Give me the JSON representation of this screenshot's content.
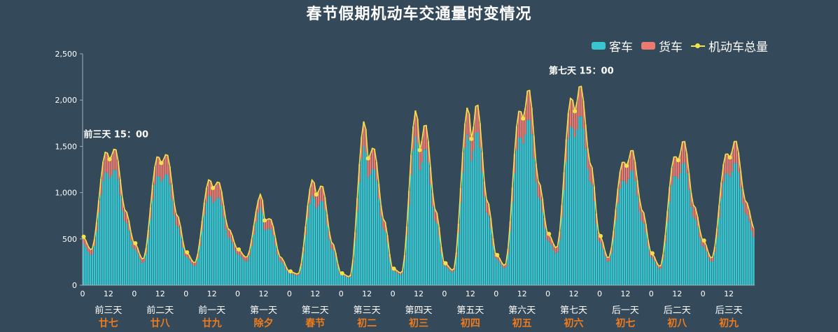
{
  "chart_data": {
    "type": "bar",
    "title": "春节假期机动车交通量时变情况",
    "xlabel": "",
    "ylabel": "",
    "ylim": [
      0,
      2500
    ],
    "yticks": [
      "0",
      "500",
      "1,000",
      "1,500",
      "2,000",
      "2,500"
    ],
    "grid": false,
    "legend_position": "top-right",
    "stacked": true,
    "hour_tick_labels": [
      "0",
      "12"
    ],
    "days": [
      {
        "name": "前三天",
        "lunar": "廿七"
      },
      {
        "name": "前二天",
        "lunar": "廿八"
      },
      {
        "name": "前一天",
        "lunar": "廿九"
      },
      {
        "name": "第一天",
        "lunar": "除夕"
      },
      {
        "name": "第二天",
        "lunar": "春节"
      },
      {
        "name": "第三天",
        "lunar": "初二"
      },
      {
        "name": "第四天",
        "lunar": "初三"
      },
      {
        "name": "第五天",
        "lunar": "初四"
      },
      {
        "name": "第六天",
        "lunar": "初五"
      },
      {
        "name": "第七天",
        "lunar": "初六"
      },
      {
        "name": "后一天",
        "lunar": "初七"
      },
      {
        "name": "后二天",
        "lunar": "初八"
      },
      {
        "name": "后三天",
        "lunar": "初九"
      }
    ],
    "day_profiles": [
      {
        "start": 530,
        "night_min": 380,
        "peak1": 1450,
        "mid_dip": 1360,
        "peak2": 1480,
        "evening": 800,
        "end": 460
      },
      {
        "start": 460,
        "night_min": 280,
        "peak1": 1400,
        "mid_dip": 1320,
        "peak2": 1420,
        "evening": 750,
        "end": 360
      },
      {
        "start": 360,
        "night_min": 240,
        "peak1": 1150,
        "mid_dip": 1050,
        "peak2": 1120,
        "evening": 600,
        "end": 390
      },
      {
        "start": 390,
        "night_min": 300,
        "peak1": 990,
        "mid_dip": 700,
        "peak2": 720,
        "evening": 300,
        "end": 150
      },
      {
        "start": 150,
        "night_min": 120,
        "peak1": 1150,
        "mid_dip": 980,
        "peak2": 1080,
        "evening": 450,
        "end": 130
      },
      {
        "start": 130,
        "night_min": 90,
        "peak1": 1790,
        "mid_dip": 1370,
        "peak2": 1490,
        "evening": 700,
        "end": 180
      },
      {
        "start": 180,
        "night_min": 130,
        "peak1": 1910,
        "mid_dip": 1460,
        "peak2": 1750,
        "evening": 800,
        "end": 240
      },
      {
        "start": 240,
        "night_min": 160,
        "peak1": 1940,
        "mid_dip": 1580,
        "peak2": 1970,
        "evening": 900,
        "end": 330
      },
      {
        "start": 330,
        "night_min": 210,
        "peak1": 1900,
        "mid_dip": 1800,
        "peak2": 2130,
        "evening": 1100,
        "end": 560
      },
      {
        "start": 560,
        "night_min": 400,
        "peak1": 2040,
        "mid_dip": 1880,
        "peak2": 2170,
        "evening": 1300,
        "end": 540
      },
      {
        "start": 540,
        "night_min": 290,
        "peak1": 1340,
        "mid_dip": 1290,
        "peak2": 1470,
        "evening": 800,
        "end": 350
      },
      {
        "start": 350,
        "night_min": 200,
        "peak1": 1400,
        "mid_dip": 1350,
        "peak2": 1570,
        "evening": 850,
        "end": 490
      },
      {
        "start": 490,
        "night_min": 290,
        "peak1": 1430,
        "mid_dip": 1380,
        "peak2": 1570,
        "evening": 900,
        "end": 600
      }
    ],
    "freight_share": 0.15,
    "series": [
      {
        "name": "客车",
        "color": "#38c7d1"
      },
      {
        "name": "货车",
        "color": "#e97b70"
      },
      {
        "name": "机动车总量",
        "color": "#f4e24a"
      }
    ],
    "annotations": [
      {
        "text": "前三天 15：00",
        "day": 0,
        "hour": 15
      },
      {
        "text": "第七天 15：00",
        "day": 9,
        "hour": 15
      }
    ],
    "colors": {
      "background": "#34495a",
      "axis": "#9fb0bc",
      "day_label": "#ffffff",
      "lunar_label": "#f07b1b"
    }
  }
}
